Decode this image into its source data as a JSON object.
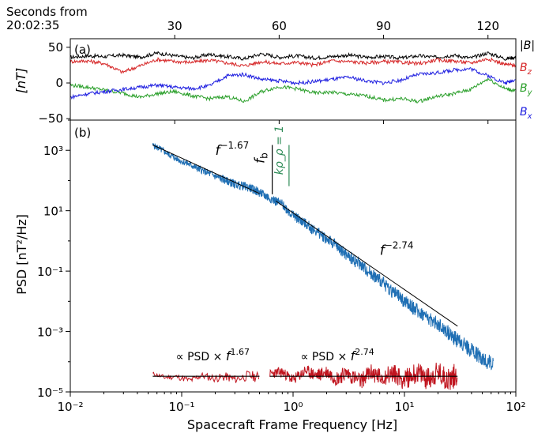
{
  "chart_data": [
    {
      "panel": "(a)",
      "type": "line",
      "top_axis_label": "Seconds from\n20:02:35",
      "xticks": [
        "30",
        "60",
        "90",
        "120"
      ],
      "xtick_values": [
        30,
        60,
        90,
        120
      ],
      "xlim": [
        0,
        128
      ],
      "ylabel": "[nT]",
      "yticks": [
        "50",
        "0",
        "−50"
      ],
      "ytick_values": [
        50,
        0,
        -50
      ],
      "ylim": [
        -52,
        62
      ],
      "legend_placement": "right",
      "series": [
        {
          "name": "|B|",
          "color": "#000000",
          "x": [
            0,
            5,
            10,
            15,
            20,
            25,
            30,
            35,
            40,
            45,
            50,
            55,
            60,
            65,
            70,
            75,
            80,
            85,
            90,
            95,
            100,
            105,
            110,
            115,
            120,
            125,
            128
          ],
          "y": [
            36,
            38,
            37,
            39,
            36,
            42,
            38,
            35,
            40,
            37,
            34,
            41,
            36,
            38,
            35,
            37,
            39,
            36,
            37,
            35,
            38,
            36,
            39,
            35,
            42,
            34,
            36
          ]
        },
        {
          "name": "B_z",
          "color": "#d62728",
          "x": [
            0,
            5,
            10,
            15,
            20,
            25,
            30,
            35,
            40,
            45,
            50,
            55,
            60,
            65,
            70,
            75,
            80,
            85,
            90,
            95,
            100,
            105,
            110,
            115,
            120,
            125,
            128
          ],
          "y": [
            30,
            31,
            27,
            15,
            24,
            33,
            30,
            29,
            32,
            28,
            24,
            30,
            27,
            29,
            25,
            31,
            30,
            28,
            30,
            29,
            27,
            32,
            31,
            28,
            34,
            26,
            25
          ]
        },
        {
          "name": "B_y",
          "color": "#2ca02c",
          "x": [
            0,
            5,
            10,
            15,
            20,
            25,
            30,
            35,
            40,
            45,
            50,
            55,
            60,
            65,
            70,
            75,
            80,
            85,
            90,
            95,
            100,
            105,
            110,
            115,
            120,
            125,
            128
          ],
          "y": [
            -3,
            -6,
            -10,
            -14,
            -20,
            -15,
            -12,
            -18,
            -22,
            -19,
            -26,
            -12,
            -5,
            -8,
            -14,
            -13,
            -16,
            -18,
            -24,
            -22,
            -26,
            -19,
            -15,
            -9,
            6,
            -8,
            -11
          ]
        },
        {
          "name": "B_x",
          "color": "#1f1fe0",
          "x": [
            0,
            5,
            10,
            15,
            20,
            25,
            30,
            35,
            40,
            45,
            50,
            55,
            60,
            65,
            70,
            75,
            80,
            85,
            90,
            95,
            100,
            105,
            110,
            115,
            120,
            125,
            128
          ],
          "y": [
            -20,
            -15,
            -12,
            -9,
            -6,
            -3,
            -6,
            -8,
            -4,
            10,
            12,
            5,
            3,
            0,
            2,
            5,
            8,
            3,
            0,
            4,
            12,
            14,
            18,
            20,
            10,
            0,
            5
          ]
        }
      ]
    },
    {
      "panel": "(b)",
      "type": "line",
      "xlabel": "Spacecraft Frame Frequency [Hz]",
      "ylabel": "PSD   [nT²/Hz]",
      "xscale": "log",
      "yscale": "log",
      "xlim": [
        0.01,
        100
      ],
      "ylim": [
        1e-05,
        10000
      ],
      "xticks": [
        "10⁻²",
        "10⁻¹",
        "10⁰",
        "10¹",
        "10²"
      ],
      "yticks": [
        "10³",
        "10¹",
        "10⁻¹",
        "10⁻³",
        "10⁻⁵"
      ],
      "psd": {
        "color": "#1f6fb4",
        "x": [
          0.055,
          0.07,
          0.09,
          0.12,
          0.15,
          0.2,
          0.25,
          0.3,
          0.4,
          0.5,
          0.6,
          0.8,
          1.0,
          1.2,
          1.5,
          2.0,
          2.5,
          3.0,
          4.0,
          5.0,
          6.0,
          8.0,
          10,
          12,
          15,
          20,
          25,
          30,
          40,
          50,
          63
        ],
        "y": [
          1500,
          900,
          520,
          330,
          220,
          140,
          100,
          75,
          60,
          40,
          28,
          16,
          7,
          4.5,
          2.5,
          1.2,
          0.65,
          0.35,
          0.17,
          0.085,
          0.05,
          0.02,
          0.01,
          0.006,
          0.0035,
          0.0017,
          0.0009,
          0.0005,
          0.00025,
          0.00013,
          8e-05
        ]
      },
      "compensated": {
        "color": "#c0141e",
        "low": {
          "x": [
            0.055,
            0.07,
            0.09,
            0.12,
            0.15,
            0.2,
            0.25,
            0.3,
            0.4,
            0.5
          ],
          "y": [
            4e-05,
            3e-05,
            3.2e-05,
            2.4e-05,
            3.5e-05,
            2.8e-05,
            3.2e-05,
            2.6e-05,
            3.5e-05,
            3e-05
          ]
        },
        "high": {
          "x": [
            0.62,
            0.8,
            1.0,
            1.3,
            1.6,
            2.0,
            2.5,
            3.0,
            4.0,
            5.0,
            6.0,
            8.0,
            10,
            13,
            16,
            20,
            25,
            30
          ],
          "y": [
            4e-05,
            4.5e-05,
            2.5e-05,
            5e-05,
            3.5e-05,
            4.5e-05,
            2.8e-05,
            4.3e-05,
            2.2e-05,
            4.5e-05,
            3e-05,
            4.2e-05,
            2.5e-05,
            4.5e-05,
            2.8e-05,
            4.2e-05,
            2.6e-05,
            4e-05
          ]
        },
        "reference_level": 3.3e-05
      },
      "fits": [
        {
          "label_base": "f",
          "label_exp": "−1.67",
          "x": [
            0.055,
            0.5
          ],
          "y": [
            1500,
            37
          ],
          "label_at": [
            0.2,
            700
          ]
        },
        {
          "label_base": "f",
          "label_exp": "−2.74",
          "x": [
            0.7,
            30
          ],
          "y": [
            21,
            0.0015
          ],
          "label_at": [
            6,
            0.35
          ]
        }
      ],
      "markers": [
        {
          "label": "f_b",
          "label_base": "f",
          "label_sub": "b",
          "x": 0.65,
          "color": "#000000",
          "y_top": 1500,
          "y_bottom": 35
        },
        {
          "label": "kρ_ρ = 1",
          "x": 0.92,
          "color": "#2e8b57",
          "y_top": 1500,
          "y_bottom": 65
        }
      ],
      "annotations": [
        {
          "text_prefix": "∝ PSD × ",
          "base": "f",
          "exp": "1.67",
          "x": 0.19,
          "y": 0.00011
        },
        {
          "text_prefix": "∝ PSD × ",
          "base": "f",
          "exp": "2.74",
          "x": 2.5,
          "y": 0.00011
        }
      ]
    }
  ]
}
